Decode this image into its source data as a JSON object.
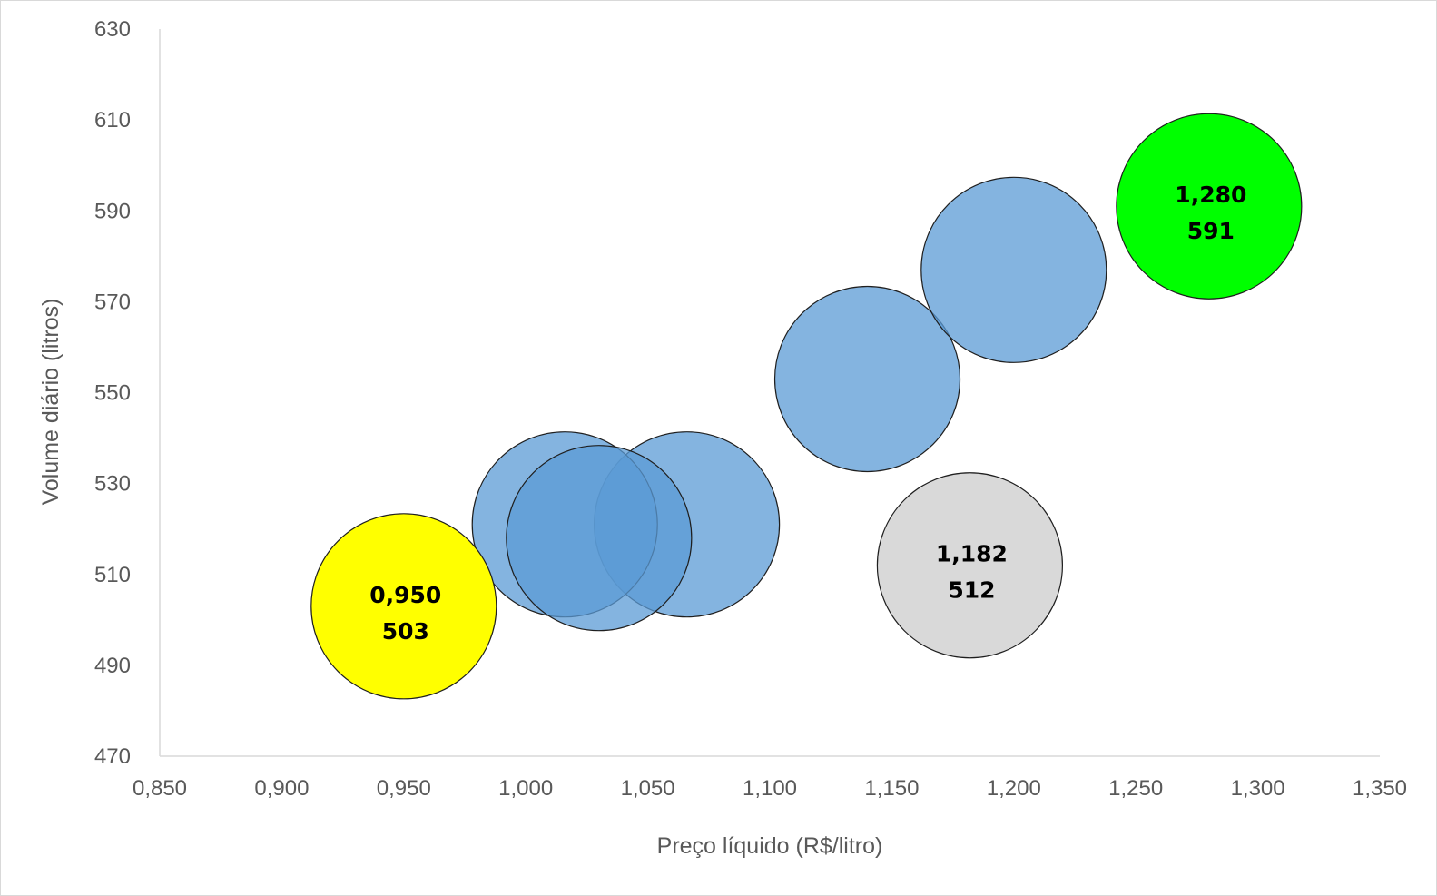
{
  "chart_data": {
    "type": "scatter",
    "subtype": "bubble",
    "title": "",
    "xlabel": "Preço líquido (R$/litro)",
    "ylabel": "Volume diário (litros)",
    "xlim": [
      0.85,
      1.35
    ],
    "ylim": [
      470,
      630
    ],
    "x_ticks": [
      "0,850",
      "0,900",
      "0,950",
      "1,000",
      "1,050",
      "1,100",
      "1,150",
      "1,200",
      "1,250",
      "1,300",
      "1,350"
    ],
    "y_ticks": [
      "470",
      "490",
      "510",
      "530",
      "550",
      "570",
      "590",
      "610",
      "630"
    ],
    "grid": false,
    "legend": "none",
    "points": [
      {
        "x": 1.066,
        "y": 521,
        "size": 1.0,
        "color": "#5b9bd5",
        "opacity": 0.75,
        "labels": []
      },
      {
        "x": 1.14,
        "y": 553,
        "size": 1.0,
        "color": "#5b9bd5",
        "opacity": 0.75,
        "labels": []
      },
      {
        "x": 1.2,
        "y": 577,
        "size": 1.0,
        "color": "#5b9bd5",
        "opacity": 0.75,
        "labels": []
      },
      {
        "x": 1.016,
        "y": 521,
        "size": 1.0,
        "color": "#5b9bd5",
        "opacity": 0.75,
        "labels": []
      },
      {
        "x": 1.03,
        "y": 518,
        "size": 1.0,
        "color": "#5b9bd5",
        "opacity": 0.75,
        "labels": []
      },
      {
        "x": 0.95,
        "y": 503,
        "size": 1.0,
        "color": "#ffff00",
        "opacity": 1,
        "labels": [
          "0,950",
          "503"
        ]
      },
      {
        "x": 1.182,
        "y": 512,
        "size": 1.0,
        "color": "#d9d9d9",
        "opacity": 1,
        "labels": [
          "1,182",
          "512"
        ]
      },
      {
        "x": 1.28,
        "y": 591,
        "size": 1.0,
        "color": "#00ff00",
        "opacity": 1,
        "labels": [
          "1,280",
          "591"
        ]
      }
    ]
  }
}
